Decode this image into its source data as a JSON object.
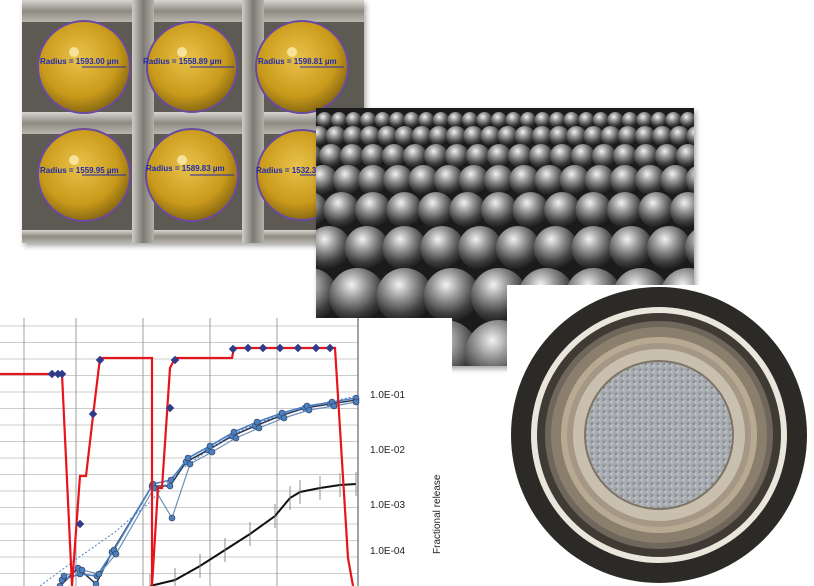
{
  "micrograph": {
    "measurements": [
      "Radius = 1593.00 µm",
      "Radius = 1558.89 µm",
      "Radius = 1598.81 µm",
      "Radius = 1559.95 µm",
      "Radius = 1589.83 µm",
      "Radius = 1532.3"
    ]
  },
  "chart_data": {
    "type": "line",
    "ylabel": "Fractional release",
    "y_scale": "log",
    "y_ticks": [
      "1.0E-01",
      "1.0E-02",
      "1.0E-03",
      "1.0E-04"
    ],
    "grid": true,
    "colors": {
      "red": "#e8141c",
      "blue": "#4a7fc1",
      "dark": "#2f3a52",
      "black": "#111111"
    }
  }
}
